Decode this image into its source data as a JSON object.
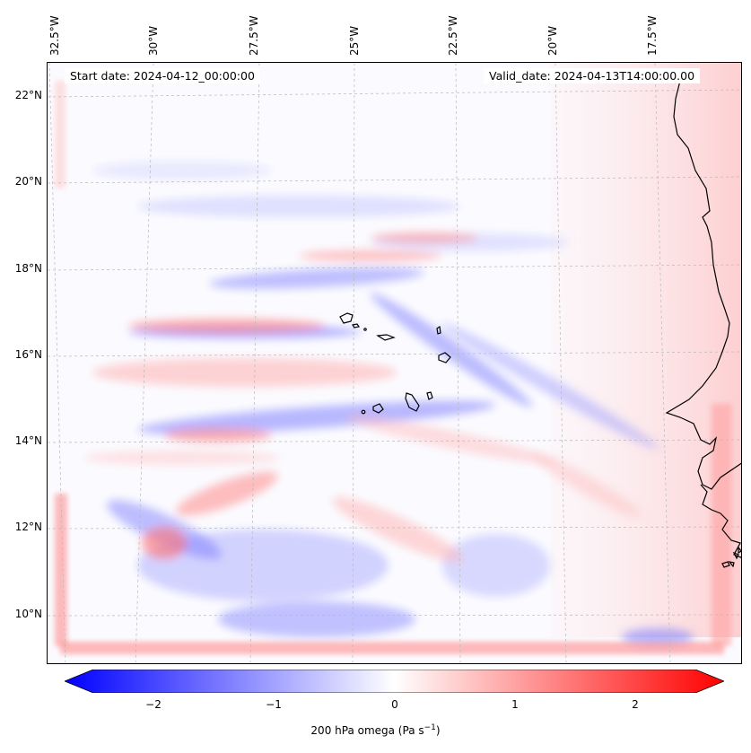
{
  "map": {
    "lon_labels": [
      "32.5°W",
      "30°W",
      "27.5°W",
      "25°W",
      "22.5°W",
      "20°W",
      "17.5°W"
    ],
    "lat_labels": [
      "22°N",
      "20°N",
      "18°N",
      "16°N",
      "14°N",
      "12°N",
      "10°N"
    ],
    "start_date": "Start date: 2024-04-12_00:00:00",
    "valid_date": "Valid_date: 2024-04-13T14:00:00.00",
    "colors": {
      "negative": "#0000ff",
      "neutral": "#ffffff",
      "positive": "#ff0000",
      "coast": "#000000"
    }
  },
  "colorbar": {
    "ticks": [
      "−2",
      "−1",
      "0",
      "1",
      "2"
    ],
    "label_main": "200 hPa omega (Pa s",
    "label_sup": "−1",
    "label_close": ")",
    "range": [
      -2.5,
      2.5
    ]
  }
}
